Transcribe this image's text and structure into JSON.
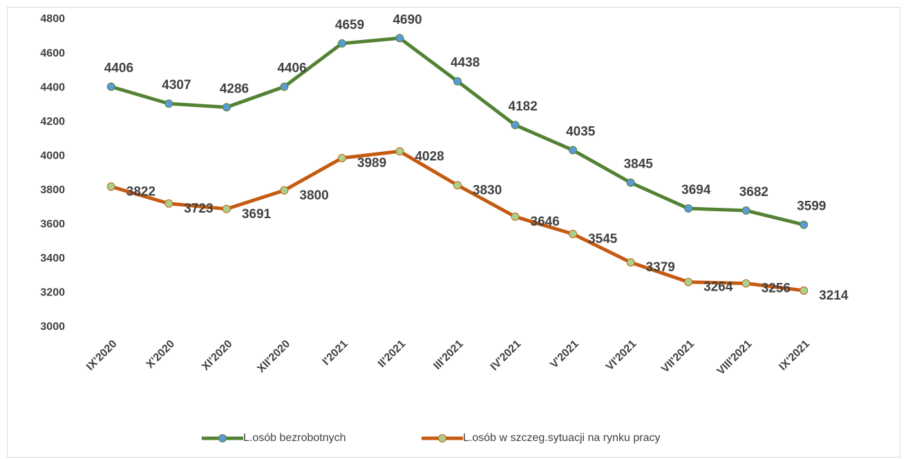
{
  "chart_data": {
    "type": "line",
    "categories": [
      "IX'2020",
      "X'2020",
      "XI'2020",
      "XII'2020",
      "I'2021",
      "II'2021",
      "III'2021",
      "IV'2021",
      "V'2021",
      "VI'2021",
      "VII'2021",
      "VIII'2021",
      "IX'2021"
    ],
    "series": [
      {
        "name": "L.osób bezrobotnych",
        "color": "#548235",
        "marker_color": "#5b9bd5",
        "values": [
          4406,
          4307,
          4286,
          4406,
          4659,
          4690,
          4438,
          4182,
          4035,
          3845,
          3694,
          3682,
          3599
        ]
      },
      {
        "name": "L.osób w szczeg.sytuacji na rynku pracy",
        "color": "#c55a11",
        "marker_color": "#a9d18e",
        "values": [
          3822,
          3723,
          3691,
          3800,
          3989,
          4028,
          3830,
          3646,
          3545,
          3379,
          3264,
          3256,
          3214
        ]
      }
    ],
    "ylim": [
      3000,
      4800
    ],
    "yticks": [
      3000,
      3200,
      3400,
      3600,
      3800,
      4000,
      4200,
      4400,
      4600,
      4800
    ],
    "grid": false,
    "legend": "bottom"
  }
}
